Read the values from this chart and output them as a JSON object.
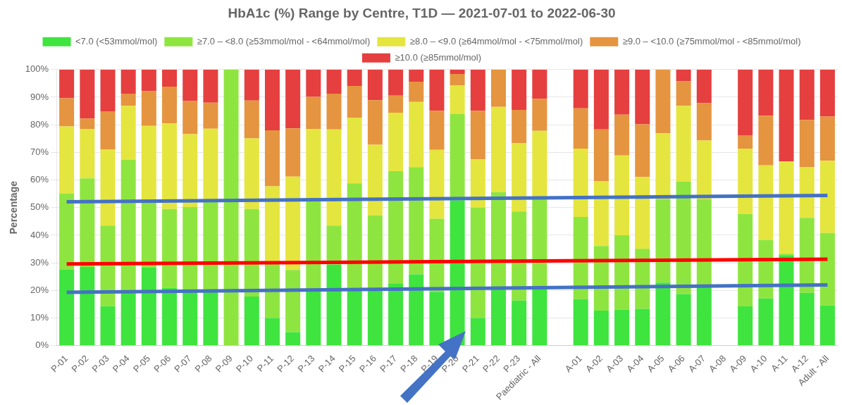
{
  "chart_data": {
    "type": "bar",
    "stacked": true,
    "title": "HbA1c (%) Range by Centre, T1D — 2021-07-01 to 2022-06-30",
    "ylabel": "Percentage",
    "categories": [
      "P-01",
      "P-02",
      "P-03",
      "P-04",
      "P-05",
      "P-06",
      "P-07",
      "P-08",
      "P-09",
      "P-10",
      "P-11",
      "P-12",
      "P-13",
      "P-14",
      "P-15",
      "P-16",
      "P-17",
      "P-18",
      "P-19",
      "P-20",
      "P-21",
      "P-22",
      "P-23",
      "Paediatric - All",
      null,
      "A-01",
      "A-02",
      "A-03",
      "A-04",
      "A-05",
      "A-06",
      "A-07",
      "A-08",
      "A-09",
      "A-10",
      "A-11",
      "A-12",
      "Adult - All"
    ],
    "ylim": [
      0,
      100
    ],
    "yticks": [
      {
        "value": 0,
        "label": "0%"
      },
      {
        "value": 10,
        "label": "10%"
      },
      {
        "value": 20,
        "label": "20%"
      },
      {
        "value": 30,
        "label": "30%"
      },
      {
        "value": 40,
        "label": "40%"
      },
      {
        "value": 50,
        "label": "50%"
      },
      {
        "value": 60,
        "label": "60%"
      },
      {
        "value": 70,
        "label": "70%"
      },
      {
        "value": 80,
        "label": "80%"
      },
      {
        "value": 90,
        "label": "90%"
      },
      {
        "value": 100,
        "label": "100%"
      }
    ],
    "grid": "y",
    "legend": "top",
    "series": [
      {
        "name": "<7.0 (<53mmol/mol)",
        "color": "#3fe43f",
        "values": [
          27.6,
          28.5,
          14.3,
          19.5,
          28.3,
          21.0,
          20,
          20,
          0,
          17.8,
          10.0,
          4.9,
          20,
          29.4,
          21,
          21,
          22.6,
          25.8,
          19.5,
          52.7,
          10.0,
          21,
          16.3,
          21,
          null,
          16.8,
          12.7,
          13.0,
          13.3,
          22.8,
          18.7,
          22,
          null,
          14.2,
          17.1,
          32.8,
          19.1,
          14.6
        ]
      },
      {
        "name": "≥7.0 – <8.0 (≥53mmol/mol - <64mmol/mol)",
        "color": "#8fe53f",
        "values": [
          27.6,
          32.1,
          29.2,
          47.8,
          23.7,
          28.5,
          30.2,
          32,
          100,
          31.7,
          19.5,
          22.5,
          32.5,
          14.1,
          37.8,
          26.2,
          40.6,
          38.9,
          26.5,
          31.2,
          40.0,
          34.6,
          32.3,
          32,
          null,
          29.8,
          23.4,
          27.0,
          21.8,
          30.2,
          40.7,
          31,
          null,
          33.5,
          21.2,
          0.5,
          27.2,
          26.2
        ]
      },
      {
        "name": "≥8.0 – <9.0 (≥64mmol/mol - <75mmol/mol)",
        "color": "#e5e53f",
        "values": [
          24.2,
          17.9,
          27.6,
          19.6,
          27.6,
          31.0,
          26.4,
          26.6,
          0,
          25.6,
          28.2,
          33.8,
          26,
          34.8,
          23.8,
          25.6,
          21.2,
          23.6,
          24.9,
          10.3,
          17.5,
          30.9,
          24.8,
          24.8,
          null,
          24.8,
          23.4,
          28.9,
          26.0,
          23.9,
          27.5,
          21.3,
          null,
          23.7,
          27.0,
          33.4,
          18.3,
          26.2
        ]
      },
      {
        "name": "≥9.0 – <10.0 (≥75mmol/mol - <85mmol/mol)",
        "color": "#e5943f",
        "values": [
          10.2,
          3.8,
          13.8,
          4.4,
          12.6,
          13.3,
          12.0,
          9.4,
          0,
          13.7,
          20.3,
          17.5,
          11.6,
          13.0,
          11.5,
          16.1,
          6.2,
          7.3,
          14.2,
          4.2,
          17.6,
          13.5,
          12.0,
          11.6,
          null,
          14.6,
          18.8,
          14.8,
          19.1,
          23.1,
          8.9,
          13.6,
          null,
          4.8,
          18.0,
          0,
          17.2,
          16.0
        ]
      },
      {
        "name": "≥10.0 (≥85mmol/mol)",
        "color": "#e53f3f",
        "values": [
          10.4,
          17.7,
          15.1,
          8.7,
          7.8,
          6.2,
          11.4,
          12.0,
          0,
          11.2,
          22.0,
          21.3,
          9.9,
          8.7,
          5.9,
          11.1,
          9.4,
          4.4,
          14.9,
          1.6,
          14.9,
          0,
          14.6,
          10.6,
          null,
          14.0,
          21.7,
          16.3,
          19.8,
          0,
          4.2,
          12.1,
          null,
          23.8,
          16.7,
          33.3,
          18.2,
          17.0
        ]
      },
      {
        "type": "line",
        "color": "#4472c4",
        "x": [
          "P-01",
          "Adult - All"
        ],
        "values": [
          52.1,
          54.4
        ]
      },
      {
        "type": "line",
        "color": "#ff0000",
        "x": [
          "P-01",
          "Adult - All"
        ],
        "values": [
          29.6,
          31.3
        ]
      },
      {
        "type": "line",
        "color": "#4472c4",
        "x": [
          "P-01",
          "Adult - All"
        ],
        "values": [
          19.3,
          22.0
        ]
      }
    ]
  }
}
